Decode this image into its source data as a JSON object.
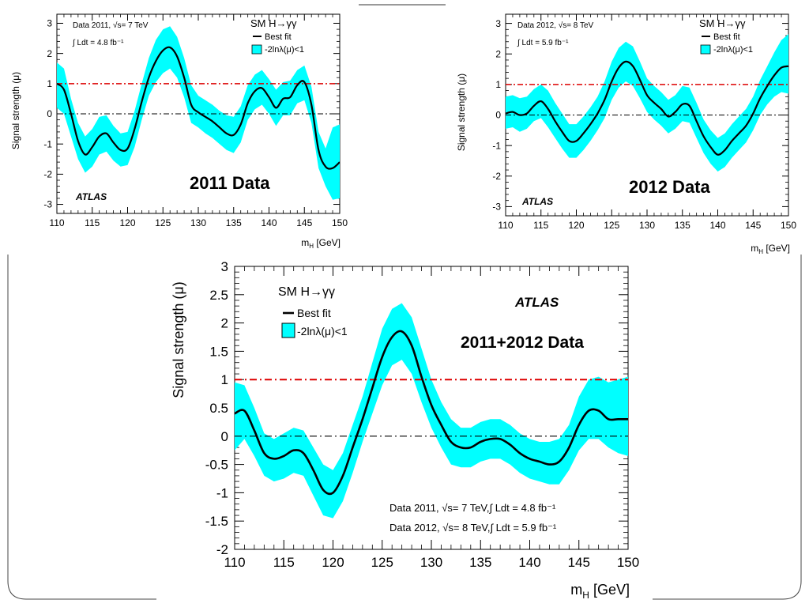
{
  "colors": {
    "band": "#00ffff",
    "best_fit": "#000000",
    "sm_line": "#dd0000",
    "zero_line": "#000000"
  },
  "chart_data": [
    {
      "id": "p2011",
      "type": "line",
      "title": "",
      "data_label": "2011 Data",
      "experiment": "ATLAS",
      "process": "SM H→γγ",
      "info_lines": [
        "Data 2011, √s= 7 TeV",
        "∫ Ldt = 4.8 fb⁻¹"
      ],
      "legend": [
        "Best fit",
        "-2lnλ(μ)<1"
      ],
      "xlabel": "m_H [GeV]",
      "ylabel": "Signal strength (μ)",
      "xlim": [
        110,
        150
      ],
      "ylim": [
        -3.3,
        3.3
      ],
      "xticks": [
        110,
        115,
        120,
        125,
        130,
        135,
        140,
        145,
        150
      ],
      "yticks": [
        -3,
        -2,
        -1,
        0,
        1,
        2,
        3
      ],
      "reference_lines": [
        1,
        0
      ],
      "x": [
        110,
        111,
        112,
        113,
        114,
        115,
        116,
        117,
        118,
        119,
        120,
        121,
        122,
        123,
        124,
        125,
        126,
        127,
        128,
        129,
        130,
        131,
        132,
        133,
        134,
        135,
        136,
        137,
        138,
        139,
        140,
        141,
        142,
        143,
        144,
        145,
        146,
        147,
        148,
        149,
        150
      ],
      "best_fit": [
        1.0,
        0.8,
        0.0,
        -0.9,
        -1.35,
        -1.1,
        -0.75,
        -0.65,
        -0.95,
        -1.2,
        -1.15,
        -0.5,
        0.4,
        1.2,
        1.75,
        2.1,
        2.2,
        1.9,
        1.2,
        0.3,
        0.05,
        -0.1,
        -0.25,
        -0.45,
        -0.65,
        -0.7,
        -0.35,
        0.35,
        0.75,
        0.85,
        0.55,
        0.2,
        0.5,
        0.55,
        0.95,
        1.05,
        0.3,
        -1.2,
        -1.75,
        -1.8,
        -1.6
      ],
      "band_upper": [
        1.7,
        1.5,
        0.5,
        -0.3,
        -0.75,
        -0.5,
        -0.1,
        -0.05,
        -0.4,
        -0.65,
        -0.6,
        0.1,
        1.0,
        1.85,
        2.45,
        2.8,
        2.9,
        2.55,
        1.85,
        0.95,
        0.6,
        0.45,
        0.3,
        0.1,
        -0.05,
        -0.1,
        0.25,
        0.95,
        1.3,
        1.45,
        1.15,
        0.8,
        1.05,
        1.1,
        1.45,
        1.6,
        0.9,
        -0.6,
        -1.15,
        -0.45,
        -0.35
      ],
      "band_lower": [
        0.2,
        0.0,
        -0.75,
        -1.5,
        -1.95,
        -1.75,
        -1.35,
        -1.25,
        -1.55,
        -1.75,
        -1.7,
        -1.1,
        -0.2,
        0.6,
        1.05,
        1.35,
        1.5,
        1.2,
        0.55,
        -0.3,
        -0.45,
        -0.65,
        -0.8,
        -1.0,
        -1.2,
        -1.3,
        -0.95,
        -0.2,
        0.15,
        0.3,
        0.0,
        -0.4,
        -0.05,
        -0.05,
        0.35,
        0.45,
        -0.3,
        -1.8,
        -2.4,
        -2.85,
        -2.8
      ]
    },
    {
      "id": "p2012",
      "type": "line",
      "title": "",
      "data_label": "2012 Data",
      "experiment": "ATLAS",
      "process": "SM H→γγ",
      "info_lines": [
        "Data 2012, √s= 8 TeV",
        "∫ Ldt = 5.9 fb⁻¹"
      ],
      "legend": [
        "Best fit",
        "-2lnλ(μ)<1"
      ],
      "xlabel": "m_H [GeV]",
      "ylabel": "Signal strength (μ)",
      "xlim": [
        110,
        150
      ],
      "ylim": [
        -3.3,
        3.3
      ],
      "xticks": [
        110,
        115,
        120,
        125,
        130,
        135,
        140,
        145,
        150
      ],
      "yticks": [
        -3,
        -2,
        -1,
        0,
        1,
        2,
        3
      ],
      "reference_lines": [
        1,
        0
      ],
      "x": [
        110,
        111,
        112,
        113,
        114,
        115,
        116,
        117,
        118,
        119,
        120,
        121,
        122,
        123,
        124,
        125,
        126,
        127,
        128,
        129,
        130,
        131,
        132,
        133,
        134,
        135,
        136,
        137,
        138,
        139,
        140,
        141,
        142,
        143,
        144,
        145,
        146,
        147,
        148,
        149,
        150
      ],
      "best_fit": [
        0.05,
        0.1,
        0.0,
        0.05,
        0.3,
        0.45,
        0.2,
        -0.2,
        -0.55,
        -0.85,
        -0.85,
        -0.6,
        -0.3,
        0.05,
        0.5,
        1.1,
        1.55,
        1.75,
        1.6,
        1.15,
        0.65,
        0.4,
        0.2,
        -0.05,
        0.1,
        0.35,
        0.3,
        -0.2,
        -0.7,
        -1.05,
        -1.3,
        -1.15,
        -0.85,
        -0.6,
        -0.35,
        0.05,
        0.55,
        0.95,
        1.3,
        1.55,
        1.6
      ],
      "band_upper": [
        0.6,
        0.65,
        0.55,
        0.6,
        0.85,
        1.0,
        0.8,
        0.4,
        0.05,
        -0.3,
        -0.3,
        -0.05,
        0.25,
        0.6,
        1.1,
        1.75,
        2.2,
        2.4,
        2.25,
        1.75,
        1.2,
        0.95,
        0.75,
        0.5,
        0.65,
        0.95,
        0.9,
        0.4,
        -0.15,
        -0.5,
        -0.75,
        -0.6,
        -0.3,
        -0.05,
        0.2,
        0.6,
        1.15,
        1.6,
        2.05,
        2.45,
        2.65
      ],
      "band_lower": [
        -0.45,
        -0.4,
        -0.55,
        -0.45,
        -0.2,
        -0.1,
        -0.4,
        -0.75,
        -1.1,
        -1.4,
        -1.4,
        -1.15,
        -0.85,
        -0.5,
        -0.1,
        0.5,
        0.9,
        1.1,
        0.95,
        0.55,
        0.1,
        -0.15,
        -0.35,
        -0.6,
        -0.45,
        -0.2,
        -0.25,
        -0.75,
        -1.25,
        -1.6,
        -1.85,
        -1.7,
        -1.4,
        -1.15,
        -0.9,
        -0.5,
        0.0,
        0.35,
        0.6,
        0.75,
        0.7
      ]
    },
    {
      "id": "pcomb",
      "type": "line",
      "title": "",
      "data_label": "2011+2012 Data",
      "experiment": "ATLAS",
      "process": "SM H→γγ",
      "info_lines": [
        "Data 2011, √s= 7 TeV,∫ Ldt = 4.8 fb⁻¹",
        "Data 2012, √s= 8 TeV,∫ Ldt = 5.9 fb⁻¹"
      ],
      "legend": [
        "Best fit",
        "-2lnλ(μ)<1"
      ],
      "xlabel": "m_H [GeV]",
      "ylabel": "Signal strength (μ)",
      "xlim": [
        110,
        150
      ],
      "ylim": [
        -2,
        3
      ],
      "xticks": [
        110,
        115,
        120,
        125,
        130,
        135,
        140,
        145,
        150
      ],
      "yticks": [
        -2,
        -1.5,
        -1,
        -0.5,
        0,
        0.5,
        1,
        1.5,
        2,
        2.5,
        3
      ],
      "reference_lines": [
        1,
        0
      ],
      "x": [
        110,
        111,
        112,
        113,
        114,
        115,
        116,
        117,
        118,
        119,
        120,
        121,
        122,
        123,
        124,
        125,
        126,
        127,
        128,
        129,
        130,
        131,
        132,
        133,
        134,
        135,
        136,
        137,
        138,
        139,
        140,
        141,
        142,
        143,
        144,
        145,
        146,
        147,
        148,
        149,
        150
      ],
      "best_fit": [
        0.4,
        0.45,
        0.1,
        -0.3,
        -0.4,
        -0.35,
        -0.25,
        -0.3,
        -0.6,
        -0.95,
        -1.0,
        -0.7,
        -0.2,
        0.3,
        0.85,
        1.4,
        1.75,
        1.85,
        1.6,
        1.05,
        0.55,
        0.2,
        -0.1,
        -0.2,
        -0.2,
        -0.1,
        -0.05,
        -0.05,
        -0.15,
        -0.3,
        -0.4,
        -0.45,
        -0.5,
        -0.45,
        -0.2,
        0.2,
        0.45,
        0.45,
        0.3,
        0.3,
        0.3
      ],
      "band_upper": [
        0.95,
        0.9,
        0.5,
        0.05,
        -0.05,
        0.05,
        0.15,
        0.1,
        -0.2,
        -0.5,
        -0.6,
        -0.3,
        0.2,
        0.7,
        1.3,
        1.9,
        2.25,
        2.35,
        2.1,
        1.55,
        1.0,
        0.6,
        0.3,
        0.15,
        0.15,
        0.25,
        0.3,
        0.3,
        0.2,
        0.05,
        -0.05,
        -0.1,
        -0.1,
        -0.05,
        0.2,
        0.7,
        1.0,
        1.05,
        0.95,
        1.0,
        1.05
      ],
      "band_lower": [
        -0.25,
        -0.05,
        -0.35,
        -0.7,
        -0.8,
        -0.75,
        -0.65,
        -0.7,
        -1.05,
        -1.4,
        -1.45,
        -1.15,
        -0.65,
        -0.1,
        0.4,
        0.9,
        1.25,
        1.35,
        1.1,
        0.6,
        0.15,
        -0.2,
        -0.5,
        -0.55,
        -0.55,
        -0.45,
        -0.4,
        -0.4,
        -0.5,
        -0.65,
        -0.75,
        -0.8,
        -0.85,
        -0.85,
        -0.6,
        -0.25,
        -0.05,
        -0.05,
        -0.2,
        -0.3,
        -0.35
      ]
    }
  ]
}
